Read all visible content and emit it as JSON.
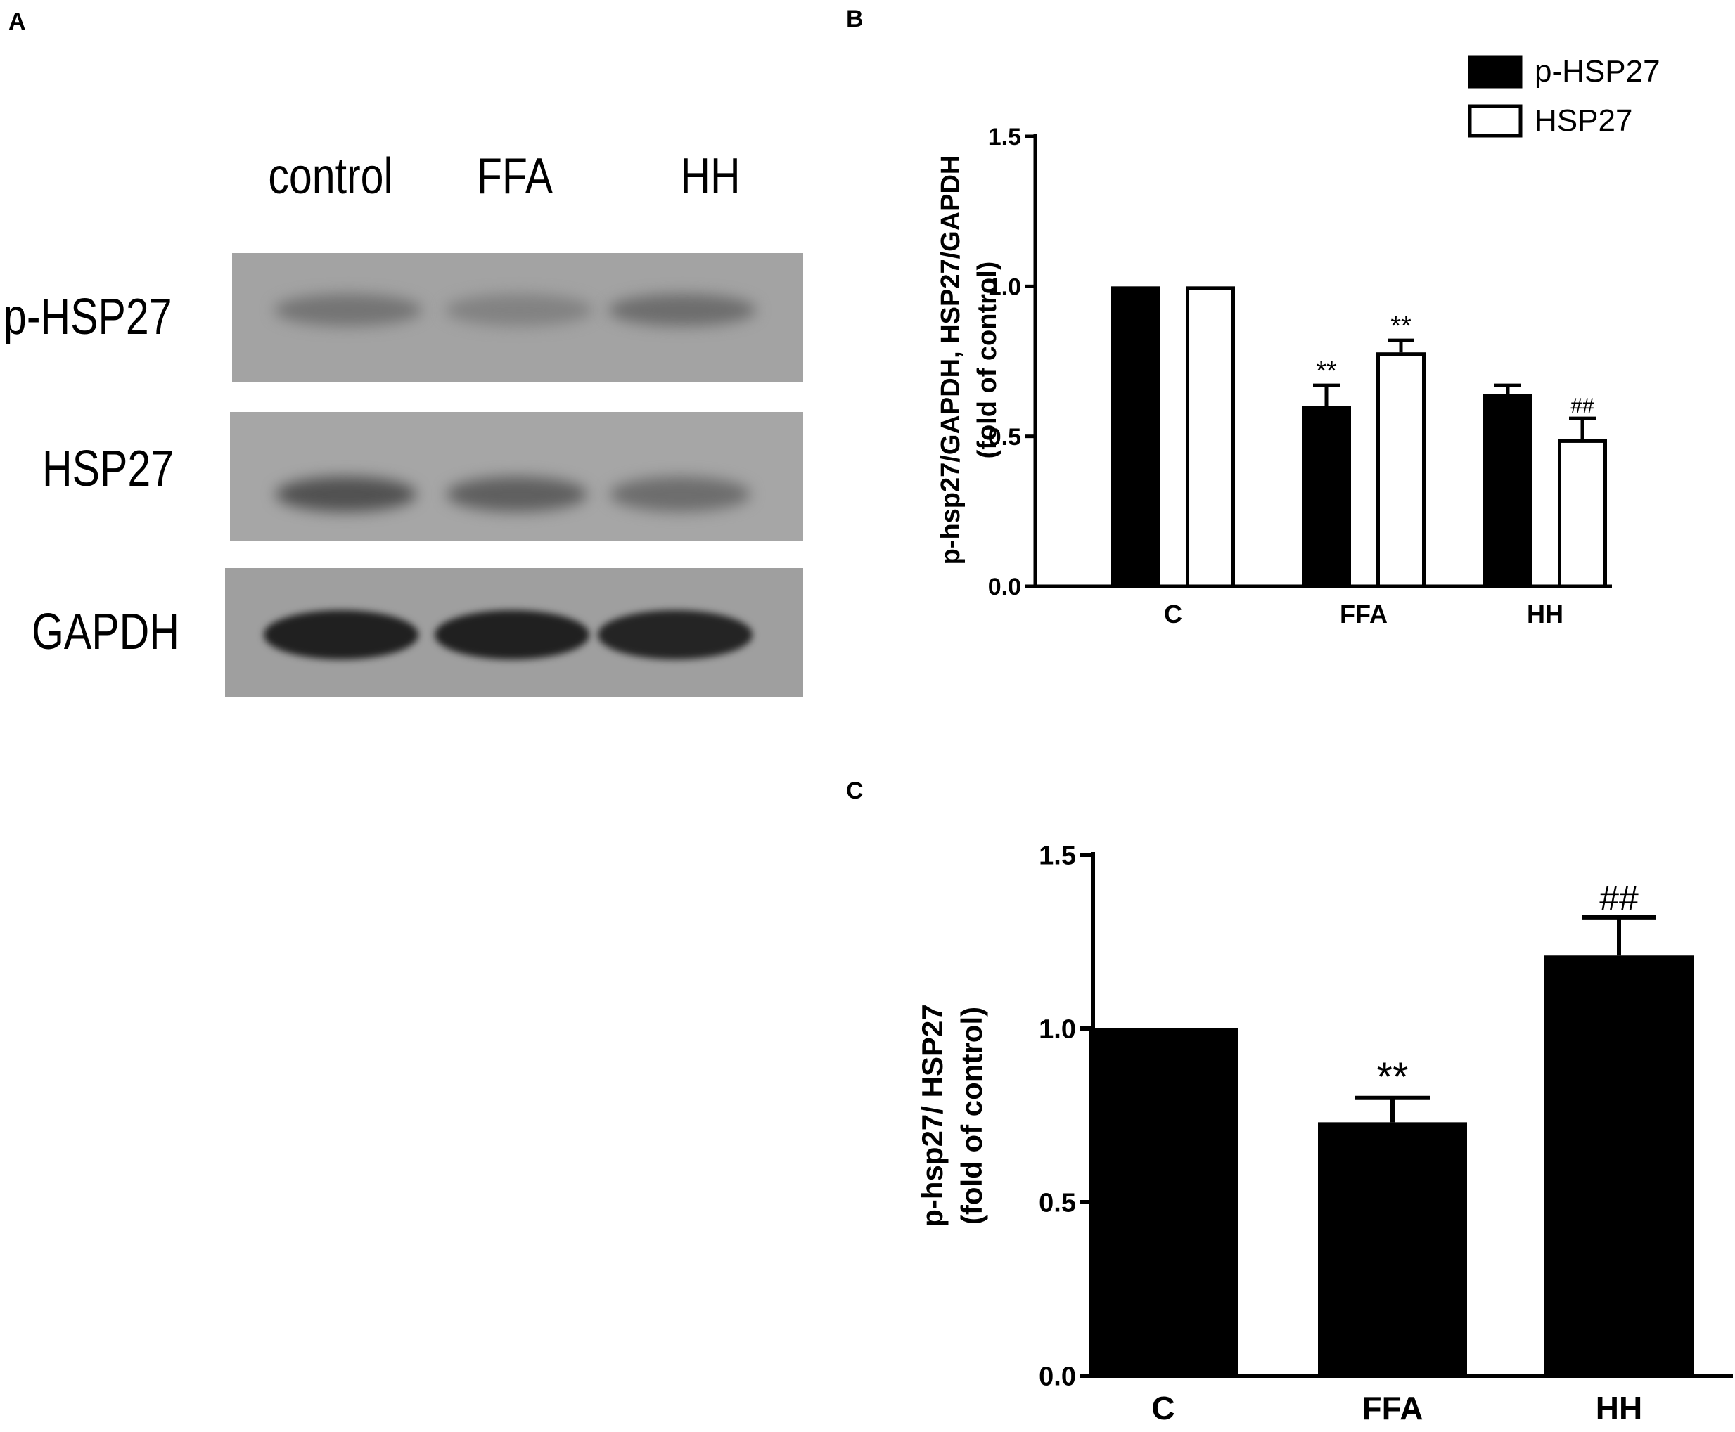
{
  "panels": {
    "a": {
      "letter": "A",
      "lanes": [
        "control",
        "FFA",
        "HH"
      ],
      "rows": [
        "p-HSP27",
        "HSP27",
        "GAPDH"
      ],
      "band_intensity": {
        "p-HSP27": [
          0.35,
          0.25,
          0.4
        ],
        "HSP27": [
          0.6,
          0.5,
          0.4
        ],
        "GAPDH": [
          0.95,
          0.95,
          0.92
        ]
      }
    },
    "b": {
      "letter": "B"
    },
    "c": {
      "letter": "C"
    }
  },
  "chart_data": [
    {
      "type": "bar",
      "panel": "B",
      "categories": [
        "C",
        "FFA",
        "HH"
      ],
      "series": [
        {
          "name": "p-HSP27",
          "values": [
            1.0,
            0.6,
            0.64
          ],
          "errors": [
            0,
            0.07,
            0.03
          ],
          "marks": [
            "",
            "**",
            ""
          ],
          "fill": "#000000"
        },
        {
          "name": "HSP27",
          "values": [
            1.0,
            0.78,
            0.49
          ],
          "errors": [
            0,
            0.04,
            0.07
          ],
          "marks": [
            "",
            "**",
            "##"
          ],
          "fill": "#ffffff"
        }
      ],
      "ylabel_lines": [
        "p-hsp27/GAPDH, HSP27/GAPDH",
        "(fold of control)"
      ],
      "yticks": [
        "0.0",
        "0.5",
        "1.0",
        "1.5"
      ],
      "ylim": [
        0,
        1.5
      ],
      "legend": "top-right"
    },
    {
      "type": "bar",
      "panel": "C",
      "categories": [
        "C",
        "FFA",
        "HH"
      ],
      "series": [
        {
          "values": [
            1.0,
            0.73,
            1.21
          ],
          "errors": [
            0,
            0.07,
            0.11
          ],
          "marks": [
            "",
            "**",
            "##"
          ],
          "fill": "#000000"
        }
      ],
      "ylabel_lines": [
        "p-hsp27/ HSP27",
        "(fold of control)"
      ],
      "yticks": [
        "0.0",
        "0.5",
        "1.0",
        "1.5"
      ],
      "ylim": [
        0,
        1.5
      ]
    }
  ]
}
